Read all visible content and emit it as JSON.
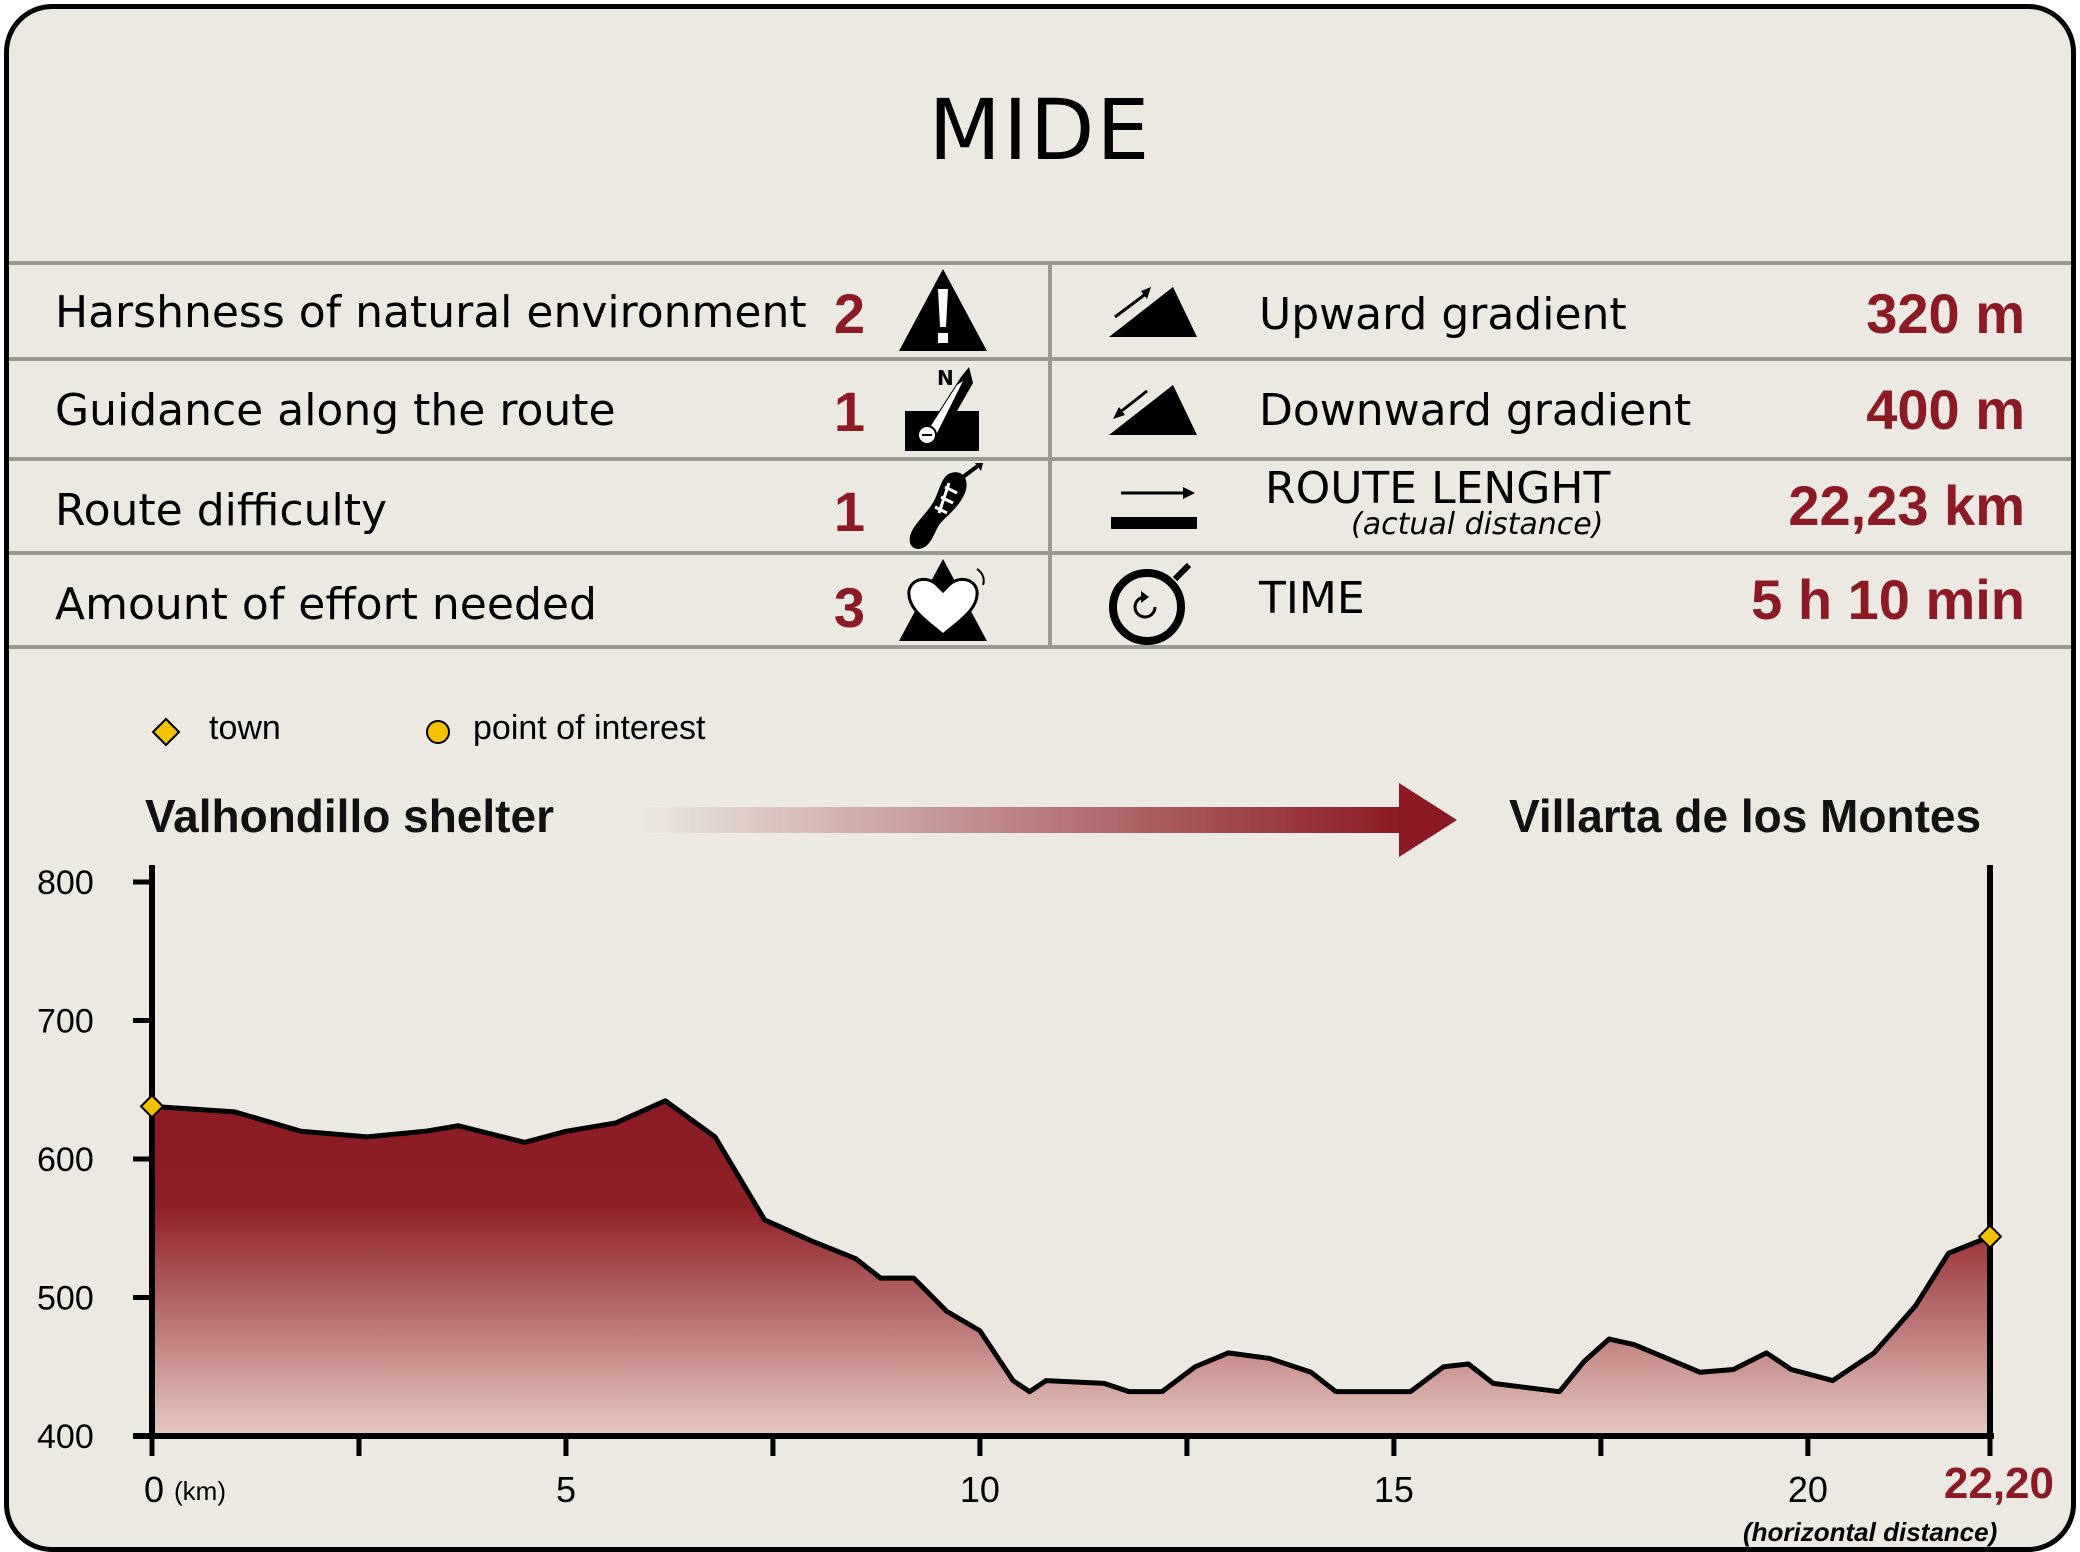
{
  "title": "MIDE",
  "mide_rows": [
    {
      "label": "Harshness of natural environment",
      "value": "2",
      "icon": "warning-icon"
    },
    {
      "label": "Guidance along the route",
      "value": "1",
      "icon": "compass-icon"
    },
    {
      "label": "Route difficulty",
      "value": "1",
      "icon": "footprint-icon"
    },
    {
      "label": "Amount of effort needed",
      "value": "3",
      "icon": "heart-icon"
    }
  ],
  "route_rows": [
    {
      "label": "Upward gradient",
      "value": "320 m",
      "icon": "uphill-icon"
    },
    {
      "label": "Downward gradient",
      "value": "400 m",
      "icon": "downhill-icon"
    },
    {
      "label": "ROUTE LENGHT",
      "sublabel": "(actual distance)",
      "value": "22,23 km",
      "icon": "distance-icon"
    },
    {
      "label": "TIME",
      "value": "5 h 10 min",
      "icon": "stopwatch-icon"
    }
  ],
  "legend": {
    "town": "town",
    "poi": "point of interest"
  },
  "start_place": "Valhondillo shelter",
  "end_place": "Villarta de los Montes",
  "colors": {
    "accent": "#8b1a24",
    "background": "#ebe9e1",
    "marker": "#f2c200"
  },
  "chart_data": {
    "type": "area",
    "x_unit_label": "(km)",
    "x_end_label": "22,20",
    "x_end_sublabel": "(horizontal distance)",
    "xlim": [
      0,
      22.2
    ],
    "ylim": [
      400,
      800
    ],
    "yticks": [
      400,
      500,
      600,
      700,
      800
    ],
    "xticks": [
      0,
      5,
      10,
      15,
      20
    ],
    "x_minor_ticks": [
      2.5,
      7.5,
      12.5,
      17.5
    ],
    "x": [
      0,
      1,
      1.8,
      2.6,
      3.3,
      3.7,
      4.5,
      5,
      5.6,
      6.2,
      6.8,
      7.4,
      8,
      8.5,
      8.8,
      9.2,
      9.6,
      10,
      10.4,
      10.6,
      10.8,
      11.5,
      11.8,
      12.2,
      12.6,
      13,
      13.5,
      14,
      14.3,
      15.2,
      15.6,
      15.9,
      16.2,
      17,
      17.3,
      17.6,
      17.9,
      18.3,
      18.7,
      19.1,
      19.5,
      19.8,
      20.3,
      20.8,
      21.3,
      21.7,
      22.2
    ],
    "y": [
      638,
      634,
      620,
      616,
      620,
      624,
      612,
      620,
      626,
      642,
      616,
      556,
      540,
      528,
      514,
      514,
      490,
      476,
      440,
      432,
      440,
      438,
      432,
      432,
      450,
      460,
      456,
      446,
      432,
      432,
      450,
      452,
      438,
      432,
      454,
      470,
      466,
      456,
      446,
      448,
      460,
      448,
      440,
      460,
      494,
      532,
      544
    ],
    "towns": [
      {
        "x": 0,
        "y": 638
      },
      {
        "x": 22.2,
        "y": 544
      }
    ]
  }
}
